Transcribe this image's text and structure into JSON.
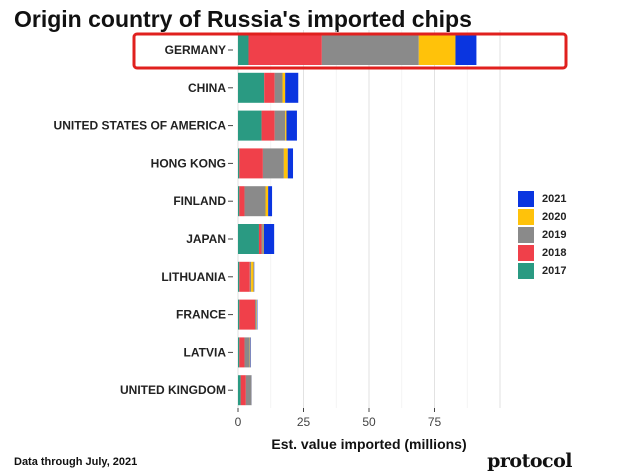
{
  "title": "Origin country of Russia's imported chips",
  "footer_note": "Data through July, 2021",
  "brand": "protocol",
  "colors": {
    "2017": "#2a9a82",
    "2018": "#f0404a",
    "2019": "#8a8a8a",
    "2020": "#ffc20a",
    "2021": "#0a35e0",
    "highlight": "#e0201e"
  },
  "legend": {
    "items": [
      {
        "label": "2021",
        "color": "#0a35e0"
      },
      {
        "label": "2020",
        "color": "#ffc20a"
      },
      {
        "label": "2019",
        "color": "#8a8a8a"
      },
      {
        "label": "2018",
        "color": "#f0404a"
      },
      {
        "label": "2017",
        "color": "#2a9a82"
      }
    ]
  },
  "chart_data": {
    "type": "bar",
    "orientation": "horizontal",
    "stacked": true,
    "categories": [
      "GERMANY",
      "CHINA",
      "UNITED STATES OF AMERICA",
      "HONG KONG",
      "FINLAND",
      "JAPAN",
      "LITHUANIA",
      "FRANCE",
      "LATVIA",
      "UNITED KINGDOM"
    ],
    "series": [
      {
        "name": "2017",
        "values": [
          4,
          10,
          9,
          0.5,
          0.5,
          8,
          0.5,
          0.5,
          0.5,
          1
        ]
      },
      {
        "name": "2018",
        "values": [
          28,
          4,
          5,
          9,
          2,
          1,
          4,
          6,
          2,
          2
        ]
      },
      {
        "name": "2019",
        "values": [
          37,
          3,
          4,
          8,
          8,
          0.5,
          0.5,
          0.5,
          2,
          2
        ]
      },
      {
        "name": "2020",
        "values": [
          14,
          1,
          0.5,
          1.5,
          1,
          0.3,
          1,
          0.2,
          0.2,
          0.1
        ]
      },
      {
        "name": "2021",
        "values": [
          8,
          5,
          4,
          2,
          1.5,
          4,
          0.2,
          0.2,
          0.2,
          0.1
        ]
      }
    ],
    "x_ticks": [
      "0",
      "25",
      "50",
      "75"
    ],
    "x_tick_values": [
      0,
      25,
      50,
      75
    ],
    "xlim": [
      0,
      100
    ],
    "xlabel": "Est. value imported (millions)",
    "highlighted_category": "GERMANY",
    "grid": true,
    "legend_position": "right"
  }
}
